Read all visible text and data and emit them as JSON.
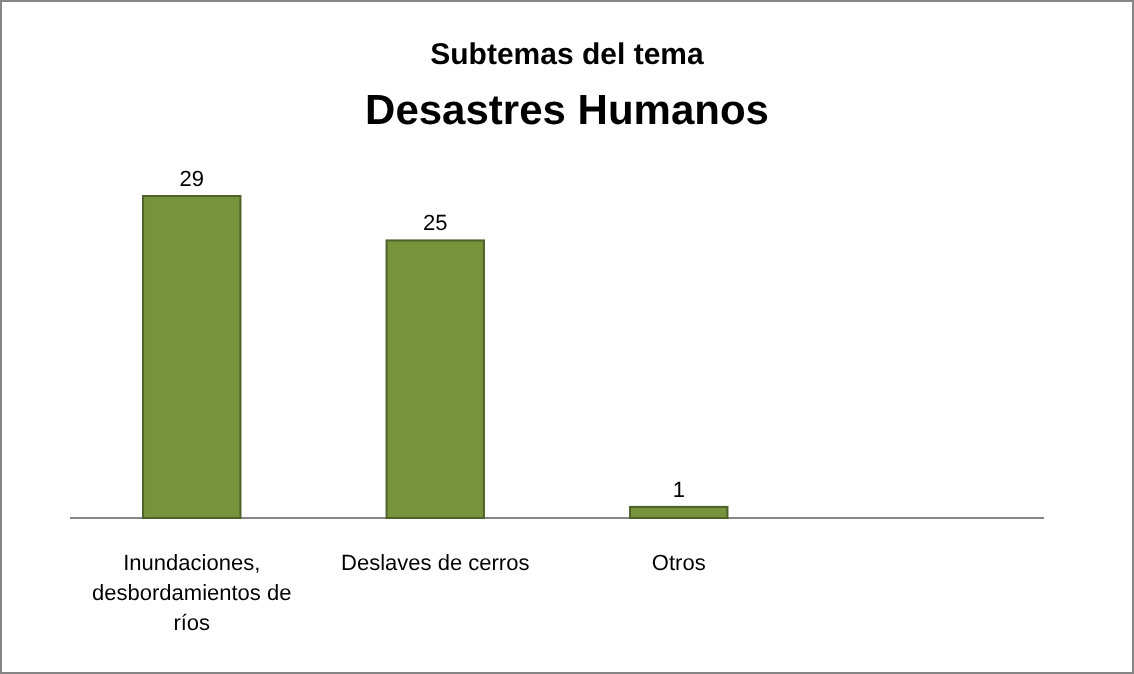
{
  "chart_data": {
    "type": "bar",
    "title": "Subtemas del tema",
    "subtitle": "Desastres Humanos",
    "categories": [
      "Inundaciones, desbordamientos de ríos",
      "Deslaves de cerros",
      "Otros"
    ],
    "values": [
      29,
      25,
      1
    ],
    "color": "#77933c",
    "data_labels": true
  }
}
